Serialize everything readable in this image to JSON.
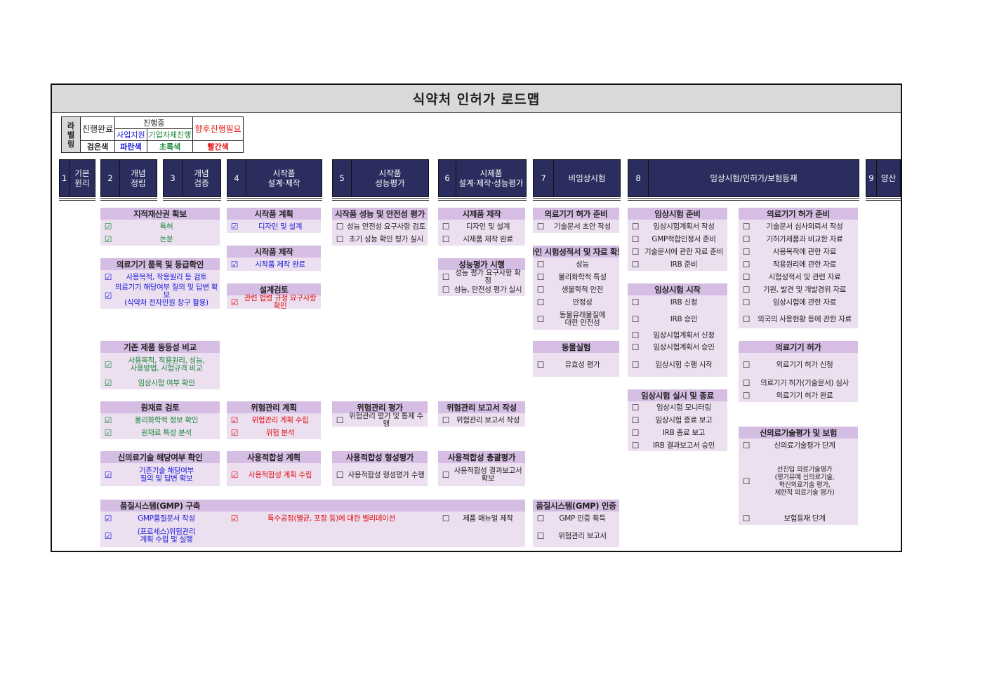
{
  "title": "식약처 인허가 로드맵",
  "legend": {
    "labeling": "라\n벨\n링",
    "done": "진행완료",
    "in_progress": "진행중",
    "support": "사업지원",
    "self": "기업자체진행",
    "future": "향후진행필요",
    "done_color": "검은색",
    "support_color": "파란색",
    "self_color": "초록색",
    "future_color": "빨간색"
  },
  "status_colors": {
    "done": "#222222",
    "support": "#1a1ad6",
    "self": "#1e8a3a",
    "future": "#e01010"
  },
  "stages": [
    {
      "num": "1",
      "label": "기본\n원리"
    },
    {
      "num": "2",
      "label": "개념\n정립"
    },
    {
      "num": "3",
      "label": "개념\n검증"
    },
    {
      "num": "4",
      "label": "시작품\n설계·제작"
    },
    {
      "num": "5",
      "label": "시작품\n성능평가"
    },
    {
      "num": "6",
      "label": "시제품\n설계·제작·성능평가"
    },
    {
      "num": "7",
      "label": "비임상시험"
    },
    {
      "num": "8",
      "label": "임상시험/인허가/보험등재"
    },
    {
      "num": "9",
      "label": "양산"
    }
  ],
  "sections": [
    {
      "title": "지적재산권 확보",
      "items": [
        {
          "checked": true,
          "status": "self",
          "text": "특허"
        },
        {
          "checked": true,
          "status": "self",
          "text": "논문"
        }
      ]
    },
    {
      "title": "의료기기 품목 및 등급확인",
      "items": [
        {
          "checked": true,
          "status": "support",
          "text": "사용목적, 작용원리 등 검토"
        },
        {
          "checked": true,
          "status": "support",
          "text": "의료기기 해당여부 질의 및 답변 확보\n(식약처 전자민원 창구 활용)"
        }
      ]
    },
    {
      "title": "기존 제품 동등성 비교",
      "items": [
        {
          "checked": true,
          "status": "self",
          "text": "사용목적, 작용원리, 성능,\n사용방법, 시험규격 비교"
        },
        {
          "checked": true,
          "status": "self",
          "text": "임상시험 여부 확인"
        }
      ]
    },
    {
      "title": "원재료 검토",
      "items": [
        {
          "checked": true,
          "status": "self",
          "text": "물리화학적 정보 확인"
        },
        {
          "checked": true,
          "status": "self",
          "text": "원재료 특성 분석"
        }
      ]
    },
    {
      "title": "신의료기술 해당여부 확인",
      "items": [
        {
          "checked": true,
          "status": "support",
          "text": "기존기술 해당여부\n질의 및 답변 확보"
        }
      ]
    },
    {
      "title": "시작품 계획",
      "items": [
        {
          "checked": true,
          "status": "support",
          "text": "디자인 및 설계"
        }
      ]
    },
    {
      "title": "시작품 제작",
      "items": [
        {
          "checked": true,
          "status": "support",
          "text": "시작품 제작 완료"
        }
      ]
    },
    {
      "title": "설계검토",
      "items": [
        {
          "checked": true,
          "status": "future",
          "text": "관련 법령 규정 요구사항확인"
        }
      ]
    },
    {
      "title": "위험관리 계획",
      "items": [
        {
          "checked": true,
          "status": "future",
          "text": "위험관리 계획 수립"
        },
        {
          "checked": true,
          "status": "future",
          "text": "위험 분석"
        }
      ]
    },
    {
      "title": "사용적합성 계획",
      "items": [
        {
          "checked": true,
          "status": "future",
          "text": "사용적합성 계획 수립"
        }
      ]
    },
    {
      "title": "시작품 성능 및 안전성 평가",
      "items": [
        {
          "checked": false,
          "status": "done",
          "text": "성능 안전성 요구사항 검토"
        },
        {
          "checked": false,
          "status": "done",
          "text": "초기 성능 확인 평가 실시"
        }
      ]
    },
    {
      "title": "위험관리 평가",
      "items": [
        {
          "checked": false,
          "status": "done",
          "text": "위험관리 평가 및 통제 수행"
        }
      ]
    },
    {
      "title": "사용적합성 형성평가",
      "items": [
        {
          "checked": false,
          "status": "done",
          "text": "사용적합성 형성평가 수행"
        }
      ]
    },
    {
      "title": "시제품 제작",
      "items": [
        {
          "checked": false,
          "status": "done",
          "text": "디자인 및 설계"
        },
        {
          "checked": false,
          "status": "done",
          "text": "시제품 제작 완료"
        }
      ]
    },
    {
      "title": "성능평가 시행",
      "items": [
        {
          "checked": false,
          "status": "done",
          "text": "성능 평가 요구사항 확정"
        },
        {
          "checked": false,
          "status": "done",
          "text": "성능, 안전성 평가 실시"
        }
      ]
    },
    {
      "title": "위험관리 보고서 작성",
      "items": [
        {
          "checked": false,
          "status": "done",
          "text": "위험관리 보고서 작성"
        }
      ]
    },
    {
      "title": "사용적합성 총괄평가",
      "items": [
        {
          "checked": false,
          "status": "done",
          "text": "사용적합성 결과보고서 확보"
        }
      ]
    },
    {
      "title": "의료기기 허가 준비",
      "items": [
        {
          "checked": false,
          "status": "done",
          "text": "기술문서 초안 작성"
        }
      ]
    },
    {
      "title": "공인 시험성적서 및 자료 확보",
      "items": [
        {
          "checked": false,
          "status": "done",
          "text": "성능"
        },
        {
          "checked": false,
          "status": "done",
          "text": "물리화학적 특성"
        },
        {
          "checked": false,
          "status": "done",
          "text": "생물학적 안전"
        },
        {
          "checked": false,
          "status": "done",
          "text": "안정성"
        },
        {
          "checked": false,
          "status": "done",
          "text": "동물유래물질에\n대한 안전성"
        }
      ]
    },
    {
      "title": "동물실험",
      "items": [
        {
          "checked": false,
          "status": "done",
          "text": "유효성 평가"
        }
      ]
    },
    {
      "title": "품질시스템(GMP) 인증",
      "items": [
        {
          "checked": false,
          "status": "done",
          "text": "GMP 인증 획득"
        },
        {
          "checked": false,
          "status": "done",
          "text": "위험관리 보고서"
        }
      ]
    },
    {
      "title": "임상시험 준비",
      "items": [
        {
          "checked": false,
          "status": "done",
          "text": "임상시험계획서 작성"
        },
        {
          "checked": false,
          "status": "done",
          "text": "GMP적합인정서 준비"
        },
        {
          "checked": false,
          "status": "done",
          "text": "기술문서에 관한 자료 준비"
        },
        {
          "checked": false,
          "status": "done",
          "text": "IRB 준비"
        }
      ]
    },
    {
      "title": "임상시험 시작",
      "items": [
        {
          "checked": false,
          "status": "done",
          "text": "IRB 신청"
        },
        {
          "checked": false,
          "status": "done",
          "text": "IRB 승인"
        },
        {
          "checked": false,
          "status": "done",
          "text": "임상시험계획서 신청"
        },
        {
          "checked": false,
          "status": "done",
          "text": "임상시험계획서 승인"
        },
        {
          "checked": false,
          "status": "done",
          "text": "임상시험 수행 시작"
        }
      ]
    },
    {
      "title": "임상시험 실시 및 종료",
      "items": [
        {
          "checked": false,
          "status": "done",
          "text": "임상시험 모니터링"
        },
        {
          "checked": false,
          "status": "done",
          "text": "임상시험 종료 보고"
        },
        {
          "checked": false,
          "status": "done",
          "text": "IRB 종료 보고"
        },
        {
          "checked": false,
          "status": "done",
          "text": "IRB 결과보고서 승인"
        }
      ]
    },
    {
      "title": "의료기기 허가 준비",
      "items": [
        {
          "checked": false,
          "status": "done",
          "text": "기술문서 심사의뢰서 작성"
        },
        {
          "checked": false,
          "status": "done",
          "text": "기허가제품과 비교한 자료"
        },
        {
          "checked": false,
          "status": "done",
          "text": "사용목적에 관한 자료"
        },
        {
          "checked": false,
          "status": "done",
          "text": "작용원리에 관한 자료"
        },
        {
          "checked": false,
          "status": "done",
          "text": "시험성적서 및 관련 자료"
        },
        {
          "checked": false,
          "status": "done",
          "text": "기원, 발견 및 개발경위 자료"
        },
        {
          "checked": false,
          "status": "done",
          "text": "임상시험에 관한 자료"
        },
        {
          "checked": false,
          "status": "done",
          "text": "외국의 사용현황 등에 관한 자료"
        }
      ]
    },
    {
      "title": "의료기기 허가",
      "items": [
        {
          "checked": false,
          "status": "done",
          "text": "의료기기 허가 신청"
        },
        {
          "checked": false,
          "status": "done",
          "text": "의료기기 허가(기술문서) 심사"
        },
        {
          "checked": false,
          "status": "done",
          "text": "의료기기 허가 완료"
        }
      ]
    },
    {
      "title": "신의료기술평가 및 보험",
      "items": [
        {
          "checked": false,
          "status": "done",
          "text": "신의료기술평가 단계"
        },
        {
          "checked": false,
          "status": "done",
          "text": "선진입 의료기술평가\n(평가유예 신의료기술,\n혁신의료기술 평가,\n제한적 의료기술 평가)"
        },
        {
          "checked": false,
          "status": "done",
          "text": "보험등재 단계"
        }
      ]
    },
    {
      "title": "품질시스템(GMP) 구축",
      "items": [
        {
          "checked": true,
          "status": "support",
          "text": "GMP품질문서 작성"
        },
        {
          "checked": true,
          "status": "support",
          "text": "(프로세스)위험관리\n계획 수립 및 실행"
        },
        {
          "checked": true,
          "status": "future",
          "text": "특수공정(멸균, 포장 등)에 대한 밸리데이션"
        },
        {
          "checked": false,
          "status": "done",
          "text": "제품 매뉴얼 제작"
        }
      ]
    }
  ]
}
